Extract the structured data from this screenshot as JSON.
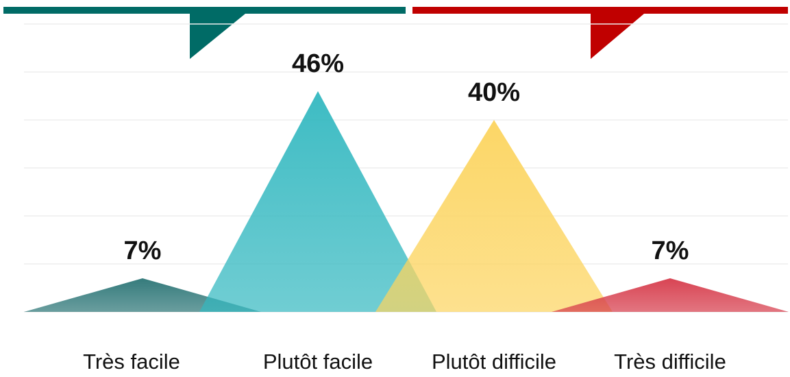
{
  "chart_data": {
    "type": "triangle",
    "categories": [
      "Très facile",
      "Plutôt facile",
      "Plutôt difficile",
      "Très difficile"
    ],
    "values": [
      7,
      46,
      40,
      7
    ],
    "value_labels": [
      "7%",
      "46%",
      "40%",
      "7%"
    ],
    "colors": [
      "#2a7475",
      "#33b8c0",
      "#fcd45e",
      "#d63a4a"
    ],
    "ylim": [
      0,
      60
    ],
    "yticks": [
      0,
      10,
      20,
      30,
      40,
      50,
      60
    ],
    "grid": true
  }
}
